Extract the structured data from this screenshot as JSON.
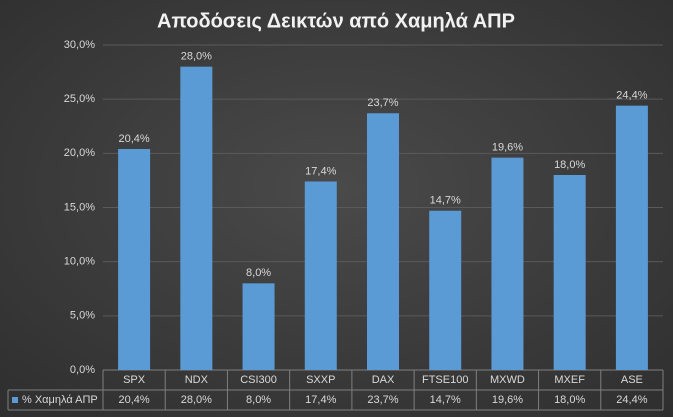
{
  "chart_data": {
    "type": "bar",
    "title": "Αποδόσεις Δεικτών από Χαμηλά ΑΠΡ",
    "categories": [
      "SPX",
      "NDX",
      "CSI300",
      "SXXP",
      "DAX",
      "FTSE100",
      "MXWD",
      "MXEF",
      "ASE"
    ],
    "series": [
      {
        "name": "% Χαμηλά ΑΠΡ",
        "color": "#5b9bd5",
        "values": [
          20.4,
          28.0,
          8.0,
          17.4,
          23.7,
          14.7,
          19.6,
          18.0,
          24.4
        ],
        "value_labels": [
          "20,4%",
          "28,0%",
          "8,0%",
          "17,4%",
          "23,7%",
          "14,7%",
          "19,6%",
          "18,0%",
          "24,4%"
        ]
      }
    ],
    "ylim": [
      0,
      30
    ],
    "yticks": [
      {
        "value": 0,
        "label": "0,0%"
      },
      {
        "value": 5,
        "label": "5,0%"
      },
      {
        "value": 10,
        "label": "10,0%"
      },
      {
        "value": 15,
        "label": "15,0%"
      },
      {
        "value": 20,
        "label": "20,0%"
      },
      {
        "value": 25,
        "label": "25,0%"
      },
      {
        "value": 30,
        "label": "30,0%"
      }
    ],
    "grid": true,
    "data_table": true
  }
}
